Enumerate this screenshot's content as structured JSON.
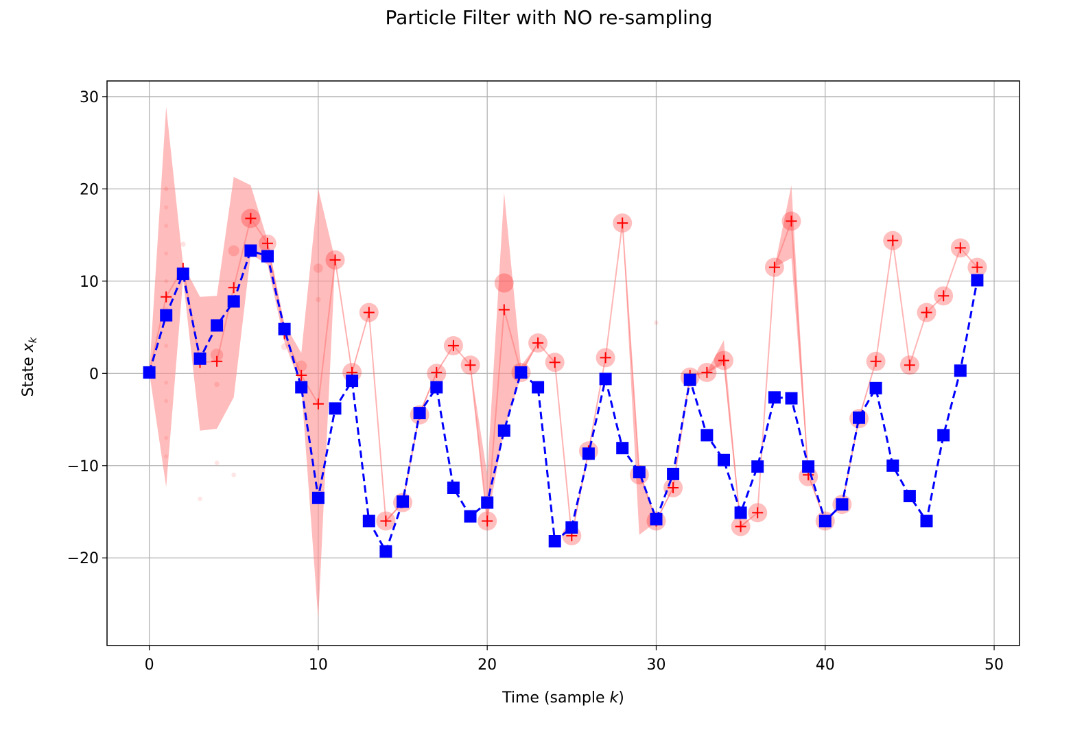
{
  "chart_data": {
    "type": "line",
    "title": "Particle Filter with NO re-sampling",
    "xlabel_prefix": "Time (sample ",
    "xlabel_var": "k",
    "xlabel_suffix": ")",
    "ylabel_prefix": "State ",
    "ylabel_var": "x",
    "ylabel_sub": "k",
    "xlim": [
      -2.5,
      51.5
    ],
    "ylim": [
      -29.5,
      31.7
    ],
    "grid": true,
    "x_ticks": [
      0,
      10,
      20,
      30,
      40,
      50
    ],
    "y_ticks": [
      30,
      20,
      10,
      0,
      -10,
      -20
    ],
    "x_tick_labels": [
      "0",
      "10",
      "20",
      "30",
      "40",
      "50"
    ],
    "y_tick_labels": [
      "30",
      "20",
      "10",
      "0",
      "−10",
      "−20"
    ],
    "x": [
      0,
      1,
      2,
      3,
      4,
      5,
      6,
      7,
      8,
      9,
      10,
      11,
      12,
      13,
      14,
      15,
      16,
      17,
      18,
      19,
      20,
      21,
      22,
      23,
      24,
      25,
      26,
      27,
      28,
      29,
      30,
      31,
      32,
      33,
      34,
      35,
      36,
      37,
      38,
      39,
      40,
      41,
      42,
      43,
      44,
      45,
      46,
      47,
      48,
      49
    ],
    "series": [
      {
        "key": "true_state",
        "style": "blue dashed line with square markers",
        "color": "#0000ff",
        "values": [
          0.1,
          6.3,
          10.8,
          1.6,
          5.2,
          7.8,
          13.3,
          12.7,
          4.8,
          -1.5,
          -13.5,
          -3.8,
          -0.8,
          -16.0,
          -19.3,
          -13.9,
          -4.3,
          -1.5,
          -12.4,
          -15.5,
          -14.0,
          -6.2,
          0.1,
          -1.5,
          -18.2,
          -16.7,
          -8.7,
          -0.6,
          -8.1,
          -10.7,
          -15.8,
          -10.9,
          -0.7,
          -6.7,
          -9.4,
          -15.1,
          -10.1,
          -2.6,
          -2.7,
          -10.1,
          -16.0,
          -14.2,
          -4.8,
          -1.6,
          -10.0,
          -13.3,
          -16.0,
          -6.7,
          0.3,
          10.1
        ]
      },
      {
        "key": "estimate",
        "style": "red plus markers joined by a light red line",
        "color": "#ff0000",
        "values": [
          0.1,
          8.3,
          11.4,
          1.2,
          1.3,
          9.3,
          16.8,
          14.1,
          4.3,
          -0.2,
          -3.3,
          12.3,
          0.1,
          6.6,
          -16.0,
          -14.0,
          -4.4,
          0.1,
          3.0,
          0.9,
          -16.0,
          6.9,
          0.1,
          3.3,
          1.2,
          -17.6,
          -8.4,
          1.7,
          16.3,
          -10.7,
          -16.0,
          -12.4,
          -0.2,
          0.1,
          1.4,
          -16.6,
          -15.1,
          11.5,
          16.5,
          -11.0,
          -16.0,
          -14.2,
          -4.9,
          1.3,
          14.4,
          0.9,
          6.6,
          8.4,
          13.6,
          11.5
        ]
      }
    ],
    "uncertainty_band": {
      "color": "#ff9090",
      "upper": [
        0.1,
        28.9,
        11.8,
        8.3,
        8.4,
        21.3,
        20.4,
        14.4,
        5.4,
        2.2,
        20.0,
        12.3,
        0.2,
        6.6,
        -15.9,
        -13.9,
        -4.2,
        0.1,
        3.0,
        0.9,
        -11.0,
        19.6,
        0.8,
        3.3,
        1.2,
        -17.5,
        -8.3,
        1.7,
        16.3,
        -10.4,
        -15.9,
        -12.3,
        -0.1,
        0.2,
        3.6,
        -16.5,
        -15.1,
        11.5,
        20.4,
        -10.9,
        -15.9,
        -14.1,
        -4.8,
        1.3,
        14.4,
        0.9,
        6.6,
        8.4,
        13.6,
        11.5
      ],
      "lower": [
        0.1,
        -12.3,
        10.2,
        -6.2,
        -6.0,
        -2.6,
        12.9,
        11.8,
        3.4,
        -1.5,
        -26.7,
        12.3,
        0.0,
        6.6,
        -16.1,
        -14.1,
        -4.6,
        0.0,
        3.0,
        0.9,
        -16.1,
        -6.2,
        -0.3,
        3.3,
        1.2,
        -17.7,
        -8.5,
        1.7,
        16.3,
        -17.5,
        -16.1,
        -12.5,
        -0.3,
        0.0,
        1.0,
        -16.7,
        -15.1,
        11.5,
        12.5,
        -11.1,
        -16.1,
        -14.3,
        -5.0,
        1.3,
        14.4,
        0.9,
        6.6,
        8.4,
        13.6,
        11.5
      ]
    },
    "weighted_particles": [
      {
        "x": 6,
        "y": 16.8,
        "w": 1.0
      },
      {
        "x": 7,
        "y": 14.1,
        "w": 0.9
      },
      {
        "x": 11,
        "y": 12.3,
        "w": 1.0
      },
      {
        "x": 12,
        "y": 0.1,
        "w": 1.0
      },
      {
        "x": 13,
        "y": 6.6,
        "w": 1.0
      },
      {
        "x": 14,
        "y": -16.0,
        "w": 1.0
      },
      {
        "x": 15,
        "y": -14.0,
        "w": 1.0
      },
      {
        "x": 16,
        "y": -4.5,
        "w": 1.0
      },
      {
        "x": 17,
        "y": 0.0,
        "w": 1.0
      },
      {
        "x": 18,
        "y": 3.0,
        "w": 1.0
      },
      {
        "x": 19,
        "y": 0.9,
        "w": 1.0
      },
      {
        "x": 20,
        "y": -16.0,
        "w": 1.0
      },
      {
        "x": 21,
        "y": 9.8,
        "w": 1.0
      },
      {
        "x": 22,
        "y": 0.1,
        "w": 1.0
      },
      {
        "x": 23,
        "y": 3.3,
        "w": 1.0
      },
      {
        "x": 24,
        "y": 1.2,
        "w": 1.0
      },
      {
        "x": 25,
        "y": -17.6,
        "w": 1.0
      },
      {
        "x": 26,
        "y": -8.4,
        "w": 1.0
      },
      {
        "x": 27,
        "y": 1.7,
        "w": 1.0
      },
      {
        "x": 28,
        "y": 16.3,
        "w": 1.0
      },
      {
        "x": 29,
        "y": -11.0,
        "w": 1.0
      },
      {
        "x": 30,
        "y": -16.0,
        "w": 1.0
      },
      {
        "x": 31,
        "y": -12.4,
        "w": 1.0
      },
      {
        "x": 32,
        "y": -0.4,
        "w": 1.0
      },
      {
        "x": 33,
        "y": 0.1,
        "w": 1.0
      },
      {
        "x": 34,
        "y": 1.4,
        "w": 1.0
      },
      {
        "x": 35,
        "y": -16.6,
        "w": 1.0
      },
      {
        "x": 36,
        "y": -15.1,
        "w": 1.0
      },
      {
        "x": 37,
        "y": 11.5,
        "w": 1.0
      },
      {
        "x": 38,
        "y": 16.5,
        "w": 1.0
      },
      {
        "x": 39,
        "y": -11.2,
        "w": 1.0
      },
      {
        "x": 40,
        "y": -16.0,
        "w": 1.0
      },
      {
        "x": 41,
        "y": -14.2,
        "w": 1.0
      },
      {
        "x": 42,
        "y": -4.9,
        "w": 1.0
      },
      {
        "x": 43,
        "y": 1.3,
        "w": 1.0
      },
      {
        "x": 44,
        "y": 14.4,
        "w": 1.0
      },
      {
        "x": 45,
        "y": 0.9,
        "w": 1.0
      },
      {
        "x": 46,
        "y": 6.6,
        "w": 1.0
      },
      {
        "x": 47,
        "y": 8.4,
        "w": 1.0
      },
      {
        "x": 48,
        "y": 13.6,
        "w": 1.0
      },
      {
        "x": 49,
        "y": 11.5,
        "w": 1.0
      },
      {
        "x": 5,
        "y": 13.3,
        "w": 0.5
      },
      {
        "x": 10,
        "y": 11.4,
        "w": 0.4
      },
      {
        "x": 4,
        "y": 2.0,
        "w": 0.6
      },
      {
        "x": 9,
        "y": 0.8,
        "w": 0.5
      },
      {
        "x": 2,
        "y": 14.0,
        "w": 0.15
      },
      {
        "x": 1,
        "y": 20.0,
        "w": 0.1
      },
      {
        "x": 1,
        "y": 18.0,
        "w": 0.08
      },
      {
        "x": 1,
        "y": 16.0,
        "w": 0.08
      },
      {
        "x": 1,
        "y": 13.0,
        "w": 0.08
      },
      {
        "x": 1,
        "y": 10.0,
        "w": 0.08
      },
      {
        "x": 1,
        "y": 7.0,
        "w": 0.08
      },
      {
        "x": 1,
        "y": 3.0,
        "w": 0.08
      },
      {
        "x": 1,
        "y": -1.0,
        "w": 0.08
      },
      {
        "x": 1,
        "y": -3.0,
        "w": 0.08
      },
      {
        "x": 1,
        "y": -7.0,
        "w": 0.08
      },
      {
        "x": 1,
        "y": -9.0,
        "w": 0.08
      },
      {
        "x": 3,
        "y": -13.6,
        "w": 0.1
      },
      {
        "x": 4,
        "y": -9.7,
        "w": 0.12
      },
      {
        "x": 4,
        "y": -1.2,
        "w": 0.15
      },
      {
        "x": 5,
        "y": -11.0,
        "w": 0.12
      },
      {
        "x": 8,
        "y": 2.9,
        "w": 0.25
      },
      {
        "x": 10,
        "y": 8.0,
        "w": 0.15
      },
      {
        "x": 30,
        "y": 5.5,
        "w": 0.1
      }
    ]
  }
}
